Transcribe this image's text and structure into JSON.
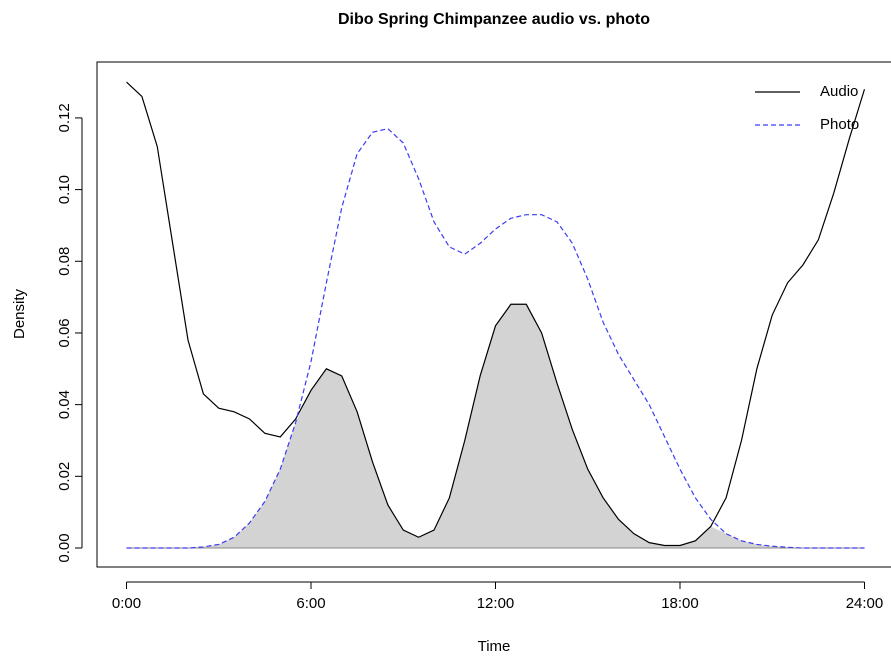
{
  "chart_data": {
    "type": "line",
    "title": "Dibo Spring Chimpanzee audio vs. photo",
    "x_label": "Time",
    "y_label": "Density",
    "x": [
      0,
      0.5,
      1,
      1.5,
      2,
      2.5,
      3,
      3.5,
      4,
      4.5,
      5,
      5.5,
      6,
      6.5,
      7,
      7.5,
      8,
      8.5,
      9,
      9.5,
      10,
      10.5,
      11,
      11.5,
      12,
      12.5,
      13,
      13.5,
      14,
      14.5,
      15,
      15.5,
      16,
      16.5,
      17,
      17.5,
      18,
      18.5,
      19,
      19.5,
      20,
      20.5,
      21,
      21.5,
      22,
      22.5,
      23,
      23.5,
      24
    ],
    "series": [
      {
        "name": "Audio",
        "color": "#000000",
        "dashed": false,
        "values": [
          0.13,
          0.126,
          0.112,
          0.085,
          0.058,
          0.043,
          0.039,
          0.038,
          0.036,
          0.032,
          0.031,
          0.036,
          0.044,
          0.05,
          0.048,
          0.038,
          0.024,
          0.012,
          0.005,
          0.003,
          0.005,
          0.014,
          0.03,
          0.048,
          0.062,
          0.068,
          0.068,
          0.06,
          0.046,
          0.033,
          0.022,
          0.014,
          0.008,
          0.004,
          0.0015,
          0.0007,
          0.0007,
          0.002,
          0.006,
          0.014,
          0.03,
          0.05,
          0.065,
          0.074,
          0.079,
          0.086,
          0.099,
          0.114,
          0.128
        ]
      },
      {
        "name": "Photo",
        "color": "#3b3bf5",
        "dashed": true,
        "values": [
          0,
          0,
          0,
          0,
          0,
          0.0003,
          0.001,
          0.003,
          0.007,
          0.013,
          0.022,
          0.035,
          0.052,
          0.074,
          0.095,
          0.11,
          0.116,
          0.117,
          0.113,
          0.103,
          0.091,
          0.084,
          0.082,
          0.085,
          0.089,
          0.092,
          0.093,
          0.093,
          0.091,
          0.085,
          0.075,
          0.063,
          0.054,
          0.047,
          0.04,
          0.031,
          0.022,
          0.014,
          0.008,
          0.004,
          0.002,
          0.001,
          0.0005,
          0.0002,
          0,
          0,
          0,
          0,
          0
        ]
      }
    ],
    "overlap_color": "#d3d3d3",
    "xlim": [
      -0.96,
      24.96
    ],
    "ylim": [
      -0.0053,
      0.1356
    ],
    "xticks": [
      {
        "value": 0,
        "label": "0:00"
      },
      {
        "value": 6,
        "label": "6:00"
      },
      {
        "value": 12,
        "label": "12:00"
      },
      {
        "value": 18,
        "label": "18:00"
      },
      {
        "value": 24,
        "label": "24:00"
      }
    ],
    "yticks": [
      {
        "value": 0,
        "label": "0.00"
      },
      {
        "value": 0.02,
        "label": "0.02"
      },
      {
        "value": 0.04,
        "label": "0.04"
      },
      {
        "value": 0.06,
        "label": "0.06"
      },
      {
        "value": 0.08,
        "label": "0.08"
      },
      {
        "value": 0.1,
        "label": "0.10"
      },
      {
        "value": 0.12,
        "label": "0.12"
      }
    ],
    "legend": "top-right"
  }
}
